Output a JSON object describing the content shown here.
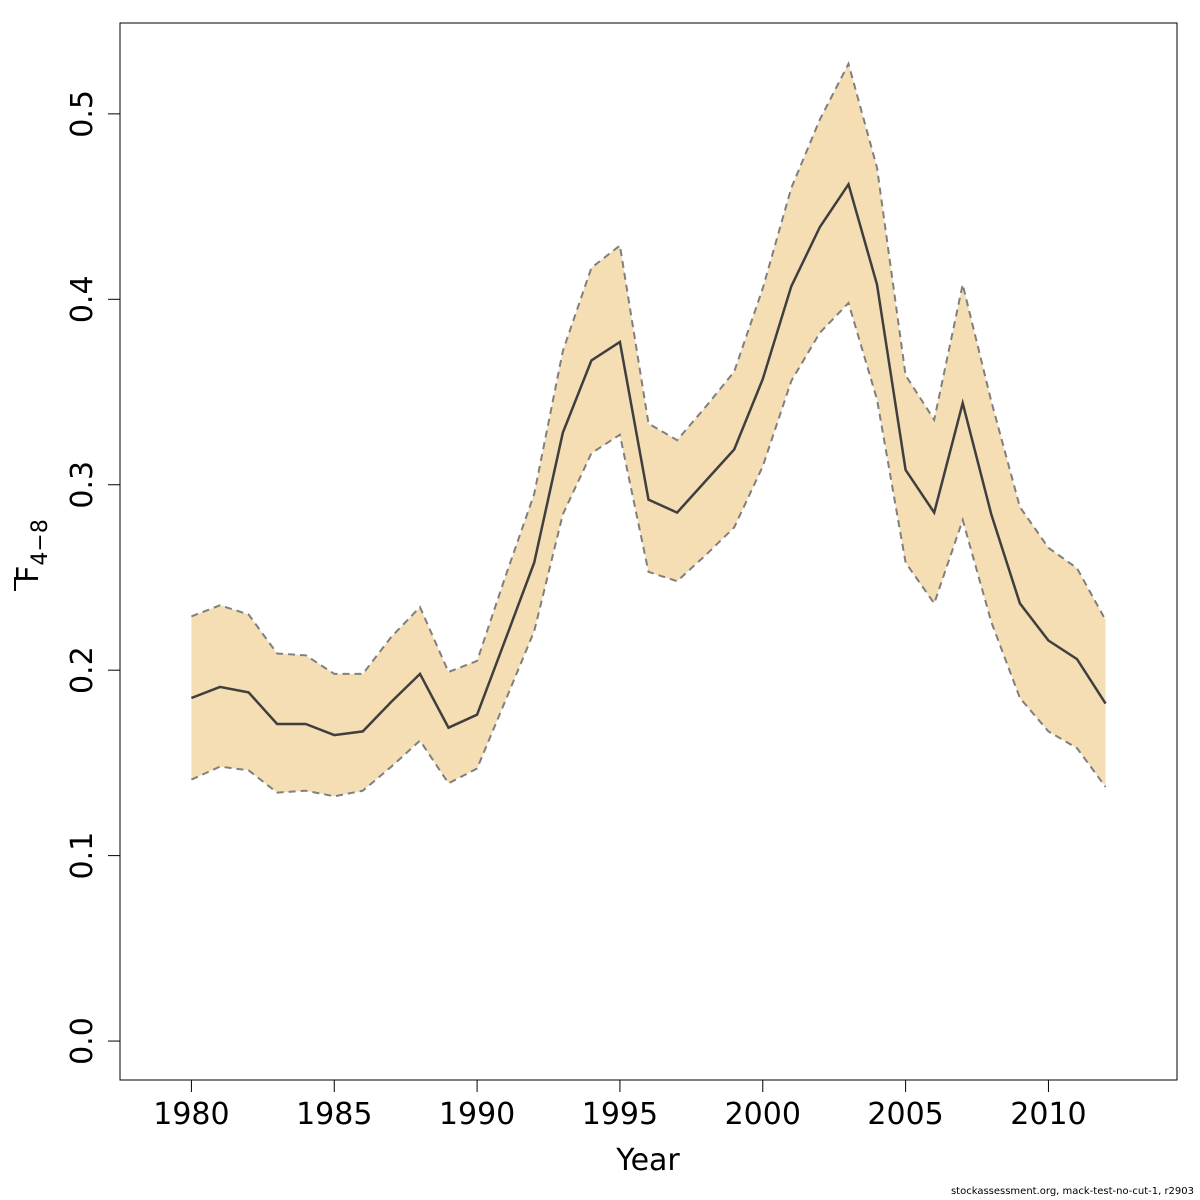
{
  "chart_data": {
    "type": "line",
    "xlabel": "Year",
    "ylabel": {
      "main": "F",
      "subscript": "4−8"
    },
    "xlim": [
      1977.5,
      2014.5
    ],
    "ylim": [
      -0.021,
      0.549
    ],
    "x_ticks": [
      1980,
      1985,
      1990,
      1995,
      2000,
      2005,
      2010
    ],
    "y_ticks": [
      0.0,
      0.1,
      0.2,
      0.3,
      0.4,
      0.5
    ],
    "y_tick_labels": [
      "0.0",
      "0.1",
      "0.2",
      "0.3",
      "0.4",
      "0.5"
    ],
    "x": [
      1980,
      1981,
      1982,
      1983,
      1984,
      1985,
      1986,
      1987,
      1988,
      1989,
      1990,
      1991,
      1992,
      1993,
      1994,
      1995,
      1996,
      1997,
      1998,
      1999,
      2000,
      2001,
      2002,
      2003,
      2004,
      2005,
      2006,
      2007,
      2008,
      2009,
      2010,
      2011,
      2012
    ],
    "series": [
      {
        "role": "estimate",
        "values": [
          0.185,
          0.191,
          0.188,
          0.171,
          0.171,
          0.165,
          0.167,
          0.183,
          0.198,
          0.169,
          0.176,
          0.217,
          0.258,
          0.328,
          0.367,
          0.377,
          0.292,
          0.285,
          0.302,
          0.319,
          0.357,
          0.407,
          0.439,
          0.462,
          0.408,
          0.308,
          0.285,
          0.344,
          0.284,
          0.236,
          0.216,
          0.206,
          0.182
        ]
      },
      {
        "role": "upper_bound",
        "values": [
          0.229,
          0.235,
          0.23,
          0.209,
          0.208,
          0.198,
          0.198,
          0.218,
          0.234,
          0.199,
          0.205,
          0.251,
          0.295,
          0.372,
          0.417,
          0.429,
          0.333,
          0.324,
          0.342,
          0.361,
          0.406,
          0.46,
          0.497,
          0.527,
          0.471,
          0.359,
          0.335,
          0.408,
          0.345,
          0.288,
          0.266,
          0.255,
          0.227
        ]
      },
      {
        "role": "lower_bound",
        "values": [
          0.141,
          0.148,
          0.146,
          0.134,
          0.135,
          0.132,
          0.135,
          0.148,
          0.162,
          0.139,
          0.147,
          0.184,
          0.221,
          0.284,
          0.317,
          0.327,
          0.253,
          0.248,
          0.262,
          0.277,
          0.31,
          0.356,
          0.382,
          0.398,
          0.346,
          0.258,
          0.236,
          0.281,
          0.226,
          0.185,
          0.167,
          0.158,
          0.137
        ]
      }
    ],
    "colors": {
      "band": "#F5DEB3",
      "band_edge": "#7f7f7f",
      "line": "#3f3f3f",
      "axis": "#000000",
      "frame": "#000000"
    },
    "grid": false,
    "legend": "none"
  },
  "footer": "stockassessment.org, mack-test-no-cut-1, r2903"
}
